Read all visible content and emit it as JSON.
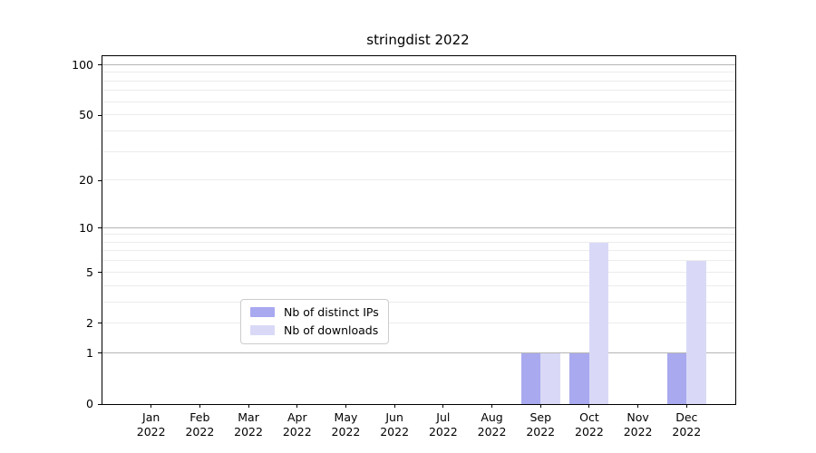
{
  "title": "stringdist 2022",
  "colors": {
    "series": [
      "#a9a9f0",
      "#d9d9f7"
    ],
    "grid_minor": "#ececec",
    "grid_major": "#b5b5b5",
    "axis": "#000000",
    "legend_border": "#cccccc"
  },
  "legend": {
    "items": [
      "Nb of distinct IPs",
      "Nb of downloads"
    ]
  },
  "chart_data": {
    "type": "bar",
    "title": "stringdist 2022",
    "xlabel": "",
    "ylabel": "",
    "y_scale": "log1p",
    "ylim_top": 113,
    "grid": "on",
    "legend_position": "lower center",
    "categories": [
      {
        "month": "Jan",
        "year": "2022"
      },
      {
        "month": "Feb",
        "year": "2022"
      },
      {
        "month": "Mar",
        "year": "2022"
      },
      {
        "month": "Apr",
        "year": "2022"
      },
      {
        "month": "May",
        "year": "2022"
      },
      {
        "month": "Jun",
        "year": "2022"
      },
      {
        "month": "Jul",
        "year": "2022"
      },
      {
        "month": "Aug",
        "year": "2022"
      },
      {
        "month": "Sep",
        "year": "2022"
      },
      {
        "month": "Oct",
        "year": "2022"
      },
      {
        "month": "Nov",
        "year": "2022"
      },
      {
        "month": "Dec",
        "year": "2022"
      }
    ],
    "series": [
      {
        "name": "Nb of distinct IPs",
        "values": [
          0,
          0,
          0,
          0,
          0,
          0,
          0,
          0,
          1,
          1,
          0,
          1
        ]
      },
      {
        "name": "Nb of downloads",
        "values": [
          0,
          0,
          0,
          0,
          0,
          0,
          0,
          0,
          1,
          8,
          0,
          6
        ]
      }
    ],
    "y_ticks": [
      {
        "value": 100,
        "label": "100"
      },
      {
        "value": 50,
        "label": "50"
      },
      {
        "value": 20,
        "label": "20"
      },
      {
        "value": 10,
        "label": "10"
      },
      {
        "value": 5,
        "label": "5"
      },
      {
        "value": 2,
        "label": "2"
      },
      {
        "value": 1,
        "label": "1"
      },
      {
        "value": 0,
        "label": "0"
      }
    ],
    "y_major_gridlines": [
      1,
      10,
      100
    ],
    "y_minor_gridlines": [
      2,
      3,
      4,
      5,
      6,
      7,
      8,
      9,
      20,
      30,
      40,
      50,
      60,
      70,
      80,
      90
    ]
  }
}
